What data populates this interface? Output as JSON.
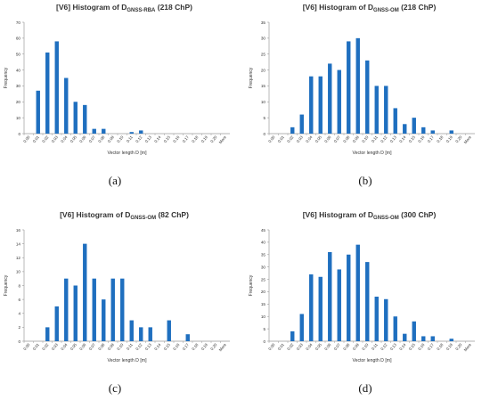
{
  "captions": [
    "(a)",
    "(b)",
    "(c)",
    "(d)"
  ],
  "colors": {
    "bar": "#1f6fbf",
    "axis": "#9a9a9a",
    "grid": "#e3e3e3",
    "text": "#333333"
  },
  "chart_data": [
    {
      "type": "bar",
      "title_prefix": "[V6] Histogram of D",
      "title_sub": "GNSS-RBA",
      "title_suffix": " (218 ChP)",
      "xlabel": "Vector length D [m]",
      "ylabel": "Frequency",
      "ylim": [
        0,
        70
      ],
      "yticks": [
        "0",
        "10",
        "20",
        "30",
        "40",
        "50",
        "60",
        "70"
      ],
      "categories": [
        "0.00",
        "0.01",
        "0.02",
        "0.03",
        "0.04",
        "0.05",
        "0.06",
        "0.07",
        "0.08",
        "0.09",
        "0.10",
        "0.11",
        "0.12",
        "0.13",
        "0.14",
        "0.15",
        "0.16",
        "0.17",
        "0.18",
        "0.19",
        "0.20",
        "More"
      ],
      "values": [
        0,
        27,
        51,
        58,
        35,
        20,
        18,
        3,
        3,
        0,
        0,
        1,
        2,
        0,
        0,
        0,
        0,
        0,
        0,
        0,
        0,
        0
      ],
      "grid": false
    },
    {
      "type": "bar",
      "title_prefix": "[V6] Histogram of D",
      "title_sub": "GNSS-OM",
      "title_suffix": " (218 ChP)",
      "xlabel": "Vector length D [m]",
      "ylabel": "Frequency",
      "ylim": [
        0,
        35
      ],
      "yticks": [
        "0",
        "5",
        "10",
        "15",
        "20",
        "25",
        "30",
        "35"
      ],
      "categories": [
        "0.00",
        "0.01",
        "0.02",
        "0.03",
        "0.04",
        "0.05",
        "0.06",
        "0.07",
        "0.08",
        "0.09",
        "0.10",
        "0.11",
        "0.12",
        "0.13",
        "0.14",
        "0.15",
        "0.16",
        "0.17",
        "0.18",
        "0.19",
        "0.20",
        "More"
      ],
      "values": [
        0,
        0,
        2,
        6,
        18,
        18,
        22,
        20,
        29,
        30,
        23,
        15,
        15,
        8,
        3,
        5,
        2,
        1,
        0,
        1,
        0,
        0
      ],
      "grid": false
    },
    {
      "type": "bar",
      "title_prefix": "[V6] Histogram of D",
      "title_sub": "GNSS-OM",
      "title_suffix": " (82 ChP)",
      "xlabel": "Vector length D [m]",
      "ylabel": "Frequency",
      "ylim": [
        0,
        16
      ],
      "yticks": [
        "0",
        "2",
        "4",
        "6",
        "8",
        "10",
        "12",
        "14",
        "16"
      ],
      "categories": [
        "0.00",
        "0.01",
        "0.02",
        "0.03",
        "0.04",
        "0.05",
        "0.06",
        "0.07",
        "0.08",
        "0.09",
        "0.10",
        "0.11",
        "0.12",
        "0.13",
        "0.14",
        "0.15",
        "0.16",
        "0.17",
        "0.18",
        "0.19",
        "0.20",
        "More"
      ],
      "values": [
        0,
        0,
        2,
        5,
        9,
        8,
        14,
        9,
        6,
        9,
        9,
        3,
        2,
        2,
        0,
        3,
        0,
        1,
        0,
        0,
        0,
        0
      ],
      "grid": false
    },
    {
      "type": "bar",
      "title_prefix": "[V6] Histogram of D",
      "title_sub": "GNSS-OM",
      "title_suffix": " (300 ChP)",
      "xlabel": "Vector length D [m]",
      "ylabel": "Frequency",
      "ylim": [
        0,
        45
      ],
      "yticks": [
        "0",
        "5",
        "10",
        "15",
        "20",
        "25",
        "30",
        "35",
        "40",
        "45"
      ],
      "categories": [
        "0.00",
        "0.01",
        "0.02",
        "0.03",
        "0.04",
        "0.05",
        "0.06",
        "0.07",
        "0.08",
        "0.09",
        "0.10",
        "0.11",
        "0.12",
        "0.13",
        "0.14",
        "0.15",
        "0.16",
        "0.17",
        "0.18",
        "0.19",
        "0.20",
        "More"
      ],
      "values": [
        0,
        0,
        4,
        11,
        27,
        26,
        36,
        29,
        35,
        39,
        32,
        18,
        17,
        10,
        3,
        8,
        2,
        2,
        0,
        1,
        0,
        0
      ],
      "grid": false
    }
  ]
}
